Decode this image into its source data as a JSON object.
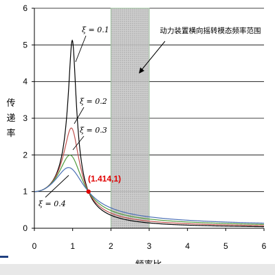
{
  "chart_data": {
    "type": "line",
    "xlabel": "频率比",
    "ylabel": "传递率",
    "xlim": [
      0,
      6
    ],
    "ylim": [
      0,
      6
    ],
    "x_ticks": [
      0,
      1,
      2,
      3,
      4,
      5,
      6
    ],
    "y_ticks": [
      0,
      1,
      2,
      3,
      4,
      5,
      6
    ],
    "grid": "horizontal",
    "band": {
      "x": [
        2,
        3
      ],
      "label": "动力装置横向摇转模态频率范围",
      "color": "#b4b4b4"
    },
    "series": [
      {
        "label": "ξ = 0.1",
        "zeta": 0.1,
        "color": "#000000"
      },
      {
        "label": "ξ = 0.2",
        "zeta": 0.2,
        "color": "#c0504d"
      },
      {
        "label": "ξ = 0.3",
        "zeta": 0.3,
        "color": "#4f9a3c"
      },
      {
        "label": "ξ = 0.4",
        "zeta": 0.4,
        "color": "#4a6fb5"
      }
    ],
    "marker": {
      "x": 1.414,
      "y": 1,
      "label": "(1.414,1)",
      "color": "#e00000"
    }
  },
  "footer": {
    "accent_color": "#1f3f7f"
  }
}
